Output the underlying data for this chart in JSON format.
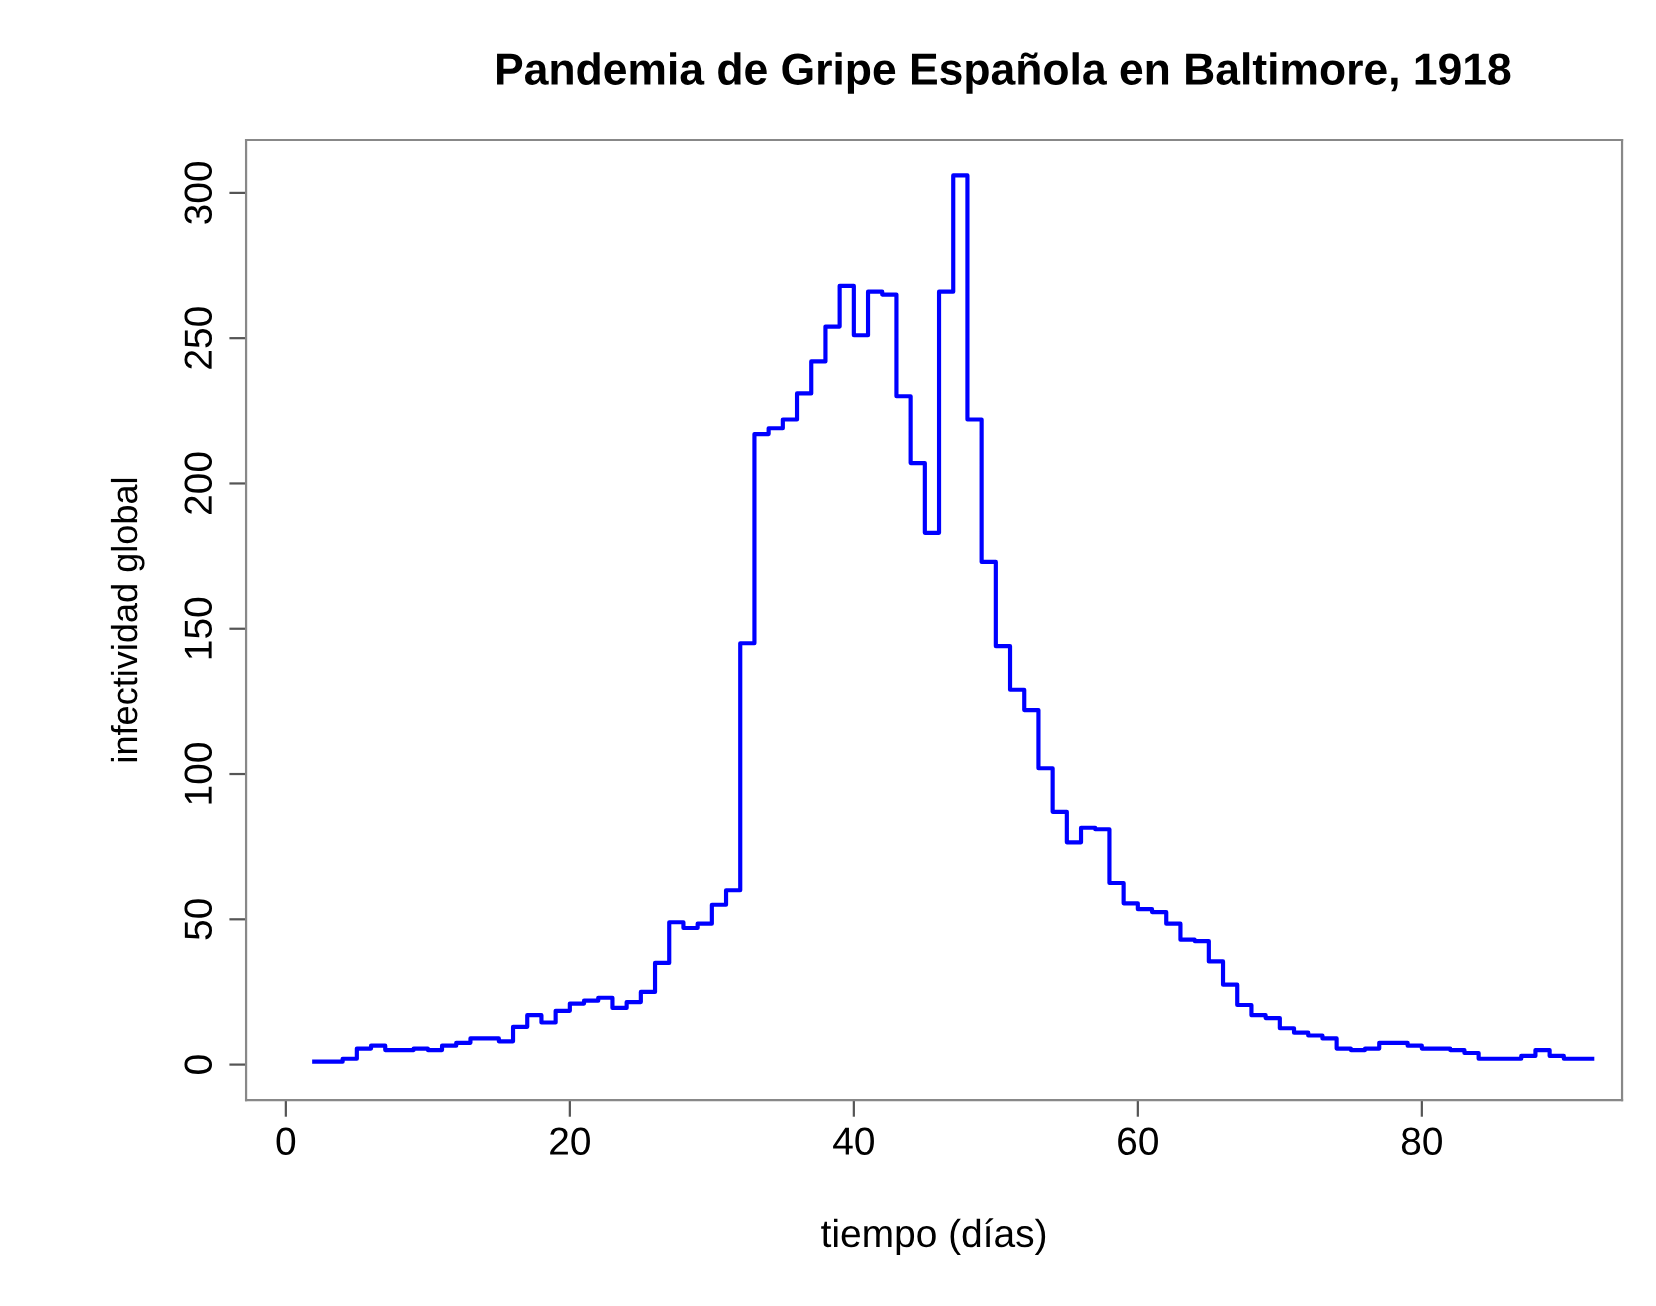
{
  "chart_data": {
    "type": "step",
    "title": "Pandemia de Gripe Española en Baltimore, 1918",
    "xlabel": "tiempo (días)",
    "ylabel": "infectividad global",
    "x": [
      2,
      3,
      4,
      5,
      6,
      7,
      8,
      9,
      10,
      11,
      12,
      13,
      14,
      15,
      16,
      17,
      18,
      19,
      20,
      21,
      22,
      23,
      24,
      25,
      26,
      27,
      28,
      29,
      30,
      31,
      32,
      33,
      34,
      35,
      36,
      37,
      38,
      39,
      40,
      41,
      42,
      43,
      44,
      45,
      46,
      47,
      48,
      49,
      50,
      51,
      52,
      53,
      54,
      55,
      56,
      57,
      58,
      59,
      60,
      61,
      62,
      63,
      64,
      65,
      66,
      67,
      68,
      69,
      70,
      71,
      72,
      73,
      74,
      75,
      76,
      77,
      78,
      79,
      80,
      81,
      82,
      83,
      84,
      85,
      86,
      87,
      88,
      89,
      90,
      91,
      92
    ],
    "series": [
      {
        "color": "#0000ff",
        "values": [
          1,
          1,
          2,
          5.5,
          6.5,
          5,
          5,
          5.5,
          5,
          6.5,
          7.5,
          9,
          9,
          8,
          13,
          17,
          14.5,
          18.5,
          21,
          22,
          23,
          19.5,
          21.5,
          25,
          35,
          49,
          47,
          48.5,
          55,
          60,
          145,
          217,
          219,
          222,
          231,
          242,
          254,
          268,
          251,
          266,
          265,
          230,
          207,
          183,
          266,
          306,
          222,
          173,
          144,
          129,
          122,
          102,
          87,
          76.5,
          81.5,
          81,
          62.5,
          55.5,
          53.5,
          52.5,
          48.5,
          43,
          42.5,
          35.5,
          27.5,
          20.5,
          17,
          16,
          12.5,
          11,
          10,
          9,
          5.5,
          5,
          5.5,
          7.5,
          7.5,
          6.5,
          5.5,
          5.5,
          5,
          4,
          2,
          2,
          2,
          3,
          5,
          3,
          2,
          2,
          2
        ]
      }
    ],
    "xlim": [
      -2.8,
      94.1
    ],
    "xticks": [
      0,
      20,
      40,
      60,
      80
    ],
    "ylim": [
      -12.2,
      318.2
    ],
    "yticks": [
      0,
      50,
      100,
      150,
      200,
      250,
      300
    ],
    "grid": false,
    "line_style": "solid"
  }
}
